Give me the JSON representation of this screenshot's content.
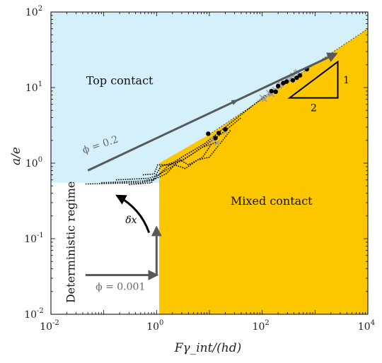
{
  "chart_data": {
    "type": "line",
    "xscale": "log",
    "yscale": "log",
    "xlim": [
      0.01,
      10000
    ],
    "ylim": [
      0.01,
      100
    ],
    "xlabel": "Fγ_int/(hd)",
    "ylabel": "a/e",
    "x_ticks": [
      {
        "value": 0.01,
        "base": "10",
        "exp": "-2"
      },
      {
        "value": 1,
        "base": "10",
        "exp": "0"
      },
      {
        "value": 100,
        "base": "10",
        "exp": "2"
      },
      {
        "value": 10000,
        "base": "10",
        "exp": "4"
      }
    ],
    "y_ticks": [
      {
        "value": 0.01,
        "base": "10",
        "exp": "-2"
      },
      {
        "value": 0.1,
        "base": "10",
        "exp": "-1"
      },
      {
        "value": 1,
        "base": "10",
        "exp": "0"
      },
      {
        "value": 10,
        "base": "10",
        "exp": "1"
      },
      {
        "value": 100,
        "base": "10",
        "exp": "2"
      }
    ],
    "regions": [
      {
        "label": "Top contact",
        "color": "#d4f1fb",
        "label_at": [
          0.2,
          11
        ]
      },
      {
        "label": "Mixed contact",
        "color": "#fdc700",
        "label_at": [
          150,
          0.28
        ]
      },
      {
        "label": "Deterministic regime",
        "color": "#ffffff",
        "label_at": [
          0.028,
          0.09
        ]
      }
    ],
    "boundaries": {
      "top_mixed": [
        [
          1.12,
          0.55
        ],
        [
          1.12,
          1.0
        ],
        [
          10,
          2.4
        ],
        [
          10000,
          60
        ]
      ],
      "deterministic_top": [
        [
          0.01,
          0.55
        ],
        [
          1.12,
          0.55
        ]
      ],
      "deterministic_mixed": [
        [
          1.12,
          0.01
        ],
        [
          1.12,
          0.55
        ]
      ]
    },
    "paths": [
      {
        "label": "ϕ = 0.2",
        "points": [
          [
            0.05,
            0.8
          ],
          [
            2500,
            28
          ]
        ],
        "label_at": [
          0.09,
          1.6
        ]
      },
      {
        "label": "ϕ = 0.001",
        "points": [
          [
            0.045,
            0.033
          ],
          [
            1.0,
            0.033
          ],
          [
            1.0,
            0.14
          ]
        ],
        "label_at": [
          0.07,
          0.021
        ]
      },
      {
        "label": "δx",
        "points": [
          [
            0.72,
            0.12
          ],
          [
            0.5,
            0.25
          ],
          [
            0.18,
            0.37
          ]
        ],
        "label_at": [
          0.33,
          0.16
        ]
      }
    ],
    "slope_triangle": {
      "points": [
        [
          330,
          7.3
        ],
        [
          2700,
          7.3
        ],
        [
          2700,
          22
        ]
      ],
      "labels": [
        "2",
        "1"
      ]
    },
    "transition_curves": [
      [
        [
          0.045,
          0.53
        ],
        [
          0.5,
          0.55
        ],
        [
          0.9,
          0.6
        ],
        [
          1.1,
          0.7
        ],
        [
          1.6,
          0.9
        ],
        [
          3,
          1.2
        ],
        [
          8,
          1.8
        ],
        [
          20,
          3
        ],
        [
          120,
          8
        ]
      ],
      [
        [
          0.09,
          0.55
        ],
        [
          0.55,
          0.58
        ],
        [
          1,
          0.63
        ],
        [
          1.5,
          0.72
        ],
        [
          2.4,
          1.0
        ],
        [
          5,
          1.35
        ],
        [
          15,
          2.3
        ],
        [
          40,
          4
        ]
      ],
      [
        [
          0.17,
          0.6
        ],
        [
          0.7,
          0.63
        ],
        [
          1.1,
          0.7
        ],
        [
          2.2,
          0.95
        ],
        [
          3.5,
          0.85
        ],
        [
          6,
          1.1
        ],
        [
          10,
          1.2
        ],
        [
          25,
          2.7
        ]
      ],
      [
        [
          0.3,
          0.52
        ],
        [
          0.8,
          0.55
        ],
        [
          1.2,
          0.9
        ],
        [
          2.8,
          1.1
        ],
        [
          4,
          0.95
        ],
        [
          7.5,
          1.2
        ],
        [
          11,
          1.8
        ]
      ],
      [
        [
          0.55,
          0.7
        ],
        [
          0.9,
          0.72
        ],
        [
          1.05,
          0.95
        ],
        [
          1.8,
          0.95
        ],
        [
          3.2,
          1.1
        ],
        [
          7,
          1.6
        ],
        [
          14,
          1.9
        ]
      ]
    ],
    "markers_dots": [
      [
        9.5,
        2.45
      ],
      [
        13,
        2.15
      ],
      [
        15,
        2.5
      ],
      [
        20,
        2.8
      ],
      [
        150,
        9
      ],
      [
        180,
        8.8
      ],
      [
        200,
        10.5
      ],
      [
        250,
        11.5
      ],
      [
        290,
        12
      ],
      [
        380,
        12.5
      ],
      [
        450,
        13.5
      ],
      [
        700,
        17.5
      ],
      [
        520,
        14.5
      ]
    ],
    "markers_cross": [
      [
        12,
        2.05
      ],
      [
        14,
        1.85
      ],
      [
        20,
        2.6
      ],
      [
        100,
        7.4
      ],
      [
        110,
        7
      ],
      [
        135,
        8.5
      ],
      [
        150,
        8.2
      ],
      [
        175,
        9.4
      ],
      [
        210,
        10.5
      ],
      [
        225,
        11
      ],
      [
        290,
        12.8
      ],
      [
        345,
        13.4
      ],
      [
        380,
        14.5
      ],
      [
        440,
        15.6
      ],
      [
        470,
        16.1
      ]
    ]
  }
}
